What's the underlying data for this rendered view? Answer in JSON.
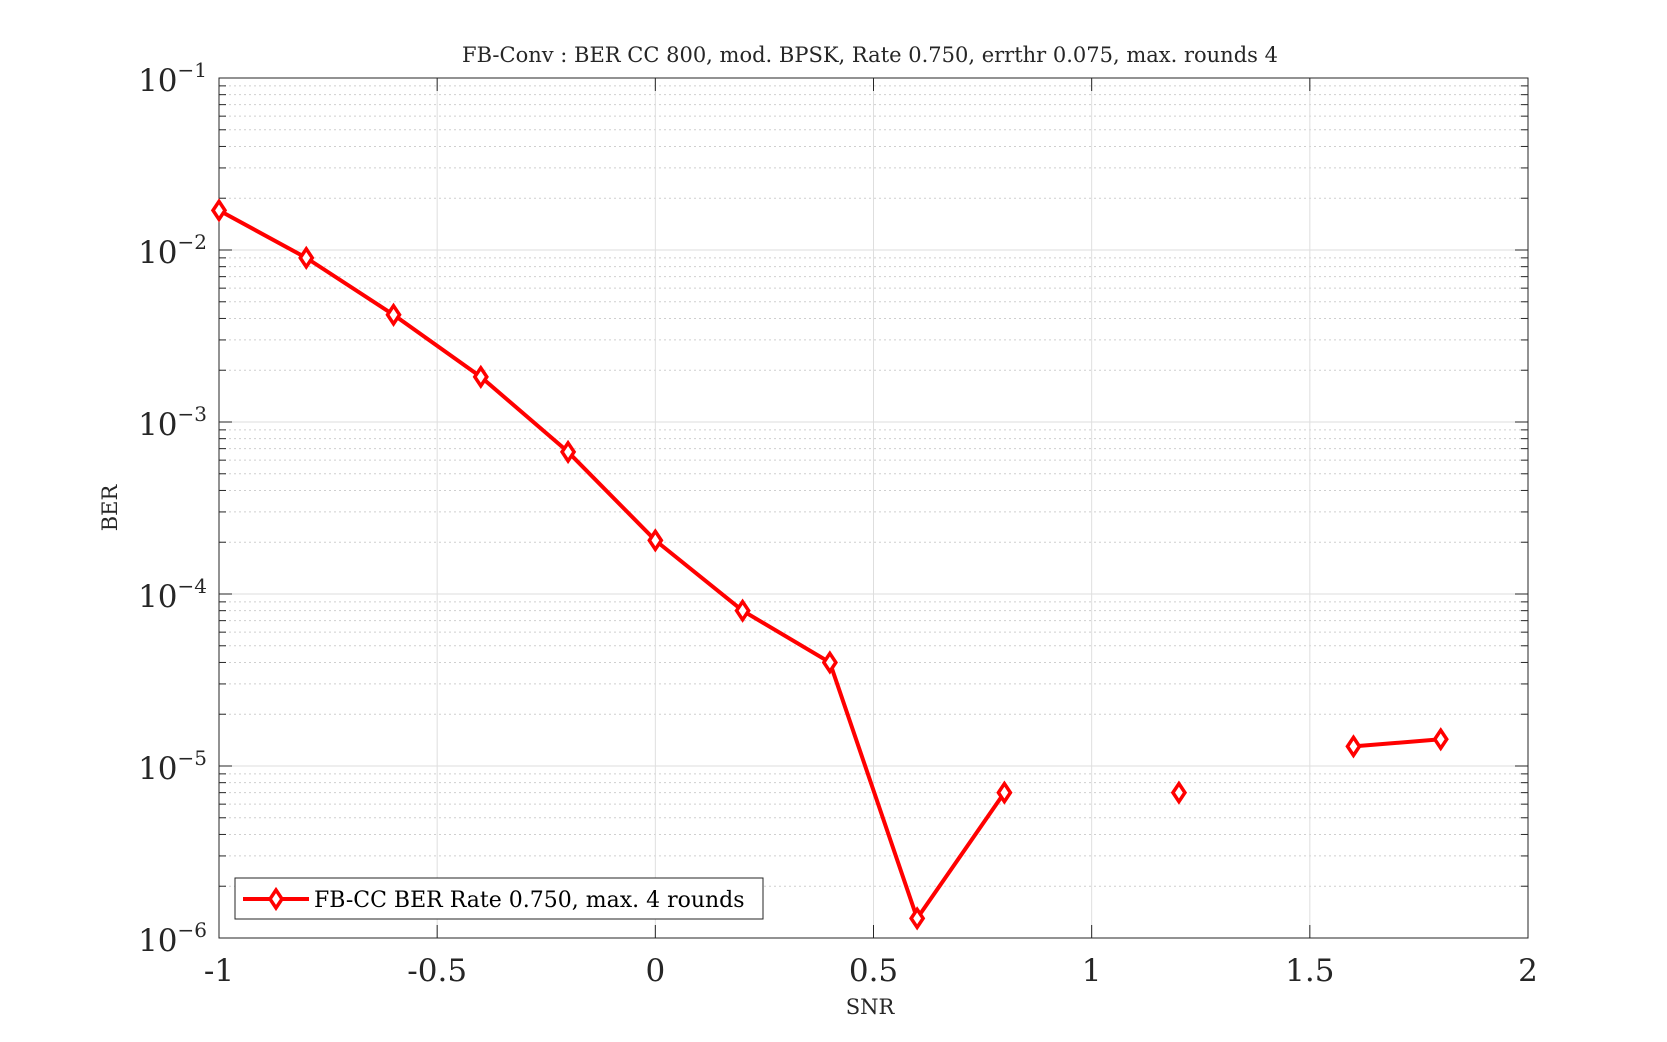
{
  "chart_data": {
    "type": "line",
    "title": "FB-Conv : BER CC 800, mod. BPSK, Rate 0.750, errthr 0.075, max. rounds 4",
    "xlabel": "SNR",
    "ylabel": "BER",
    "xlim": [
      -1,
      2
    ],
    "ylim": [
      1e-06,
      0.1
    ],
    "yscale": "log",
    "grid": true,
    "minor_grid": true,
    "legend_position": "bottom-left",
    "x_ticks": [
      -1,
      -0.5,
      0,
      0.5,
      1,
      1.5,
      2
    ],
    "x_tick_labels": [
      "-1",
      "-0.5",
      "0",
      "0.5",
      "1",
      "1.5",
      "2"
    ],
    "y_ticks": [
      {
        "value": 1e-06,
        "base": "10",
        "exp": "−6"
      },
      {
        "value": 1e-05,
        "base": "10",
        "exp": "−5"
      },
      {
        "value": 0.0001,
        "base": "10",
        "exp": "−4"
      },
      {
        "value": 0.001,
        "base": "10",
        "exp": "−3"
      },
      {
        "value": 0.01,
        "base": "10",
        "exp": "−2"
      },
      {
        "value": 0.1,
        "base": "10",
        "exp": "−1"
      }
    ],
    "series": [
      {
        "name": "FB-CC BER Rate 0.750, max. 4 rounds",
        "color": "#ff0000",
        "marker": "diamond",
        "x": [
          -1,
          -0.8,
          -0.6,
          -0.4,
          -0.2,
          0,
          0.2,
          0.4,
          0.6,
          0.8,
          1.0,
          1.2,
          1.4,
          1.6,
          1.8
        ],
        "y": [
          0.017,
          0.009,
          0.0042,
          0.00183,
          0.00067,
          0.000205,
          8e-05,
          4e-05,
          1.3e-06,
          7e-06,
          null,
          7e-06,
          null,
          1.3e-05,
          1.43e-05
        ]
      }
    ]
  }
}
